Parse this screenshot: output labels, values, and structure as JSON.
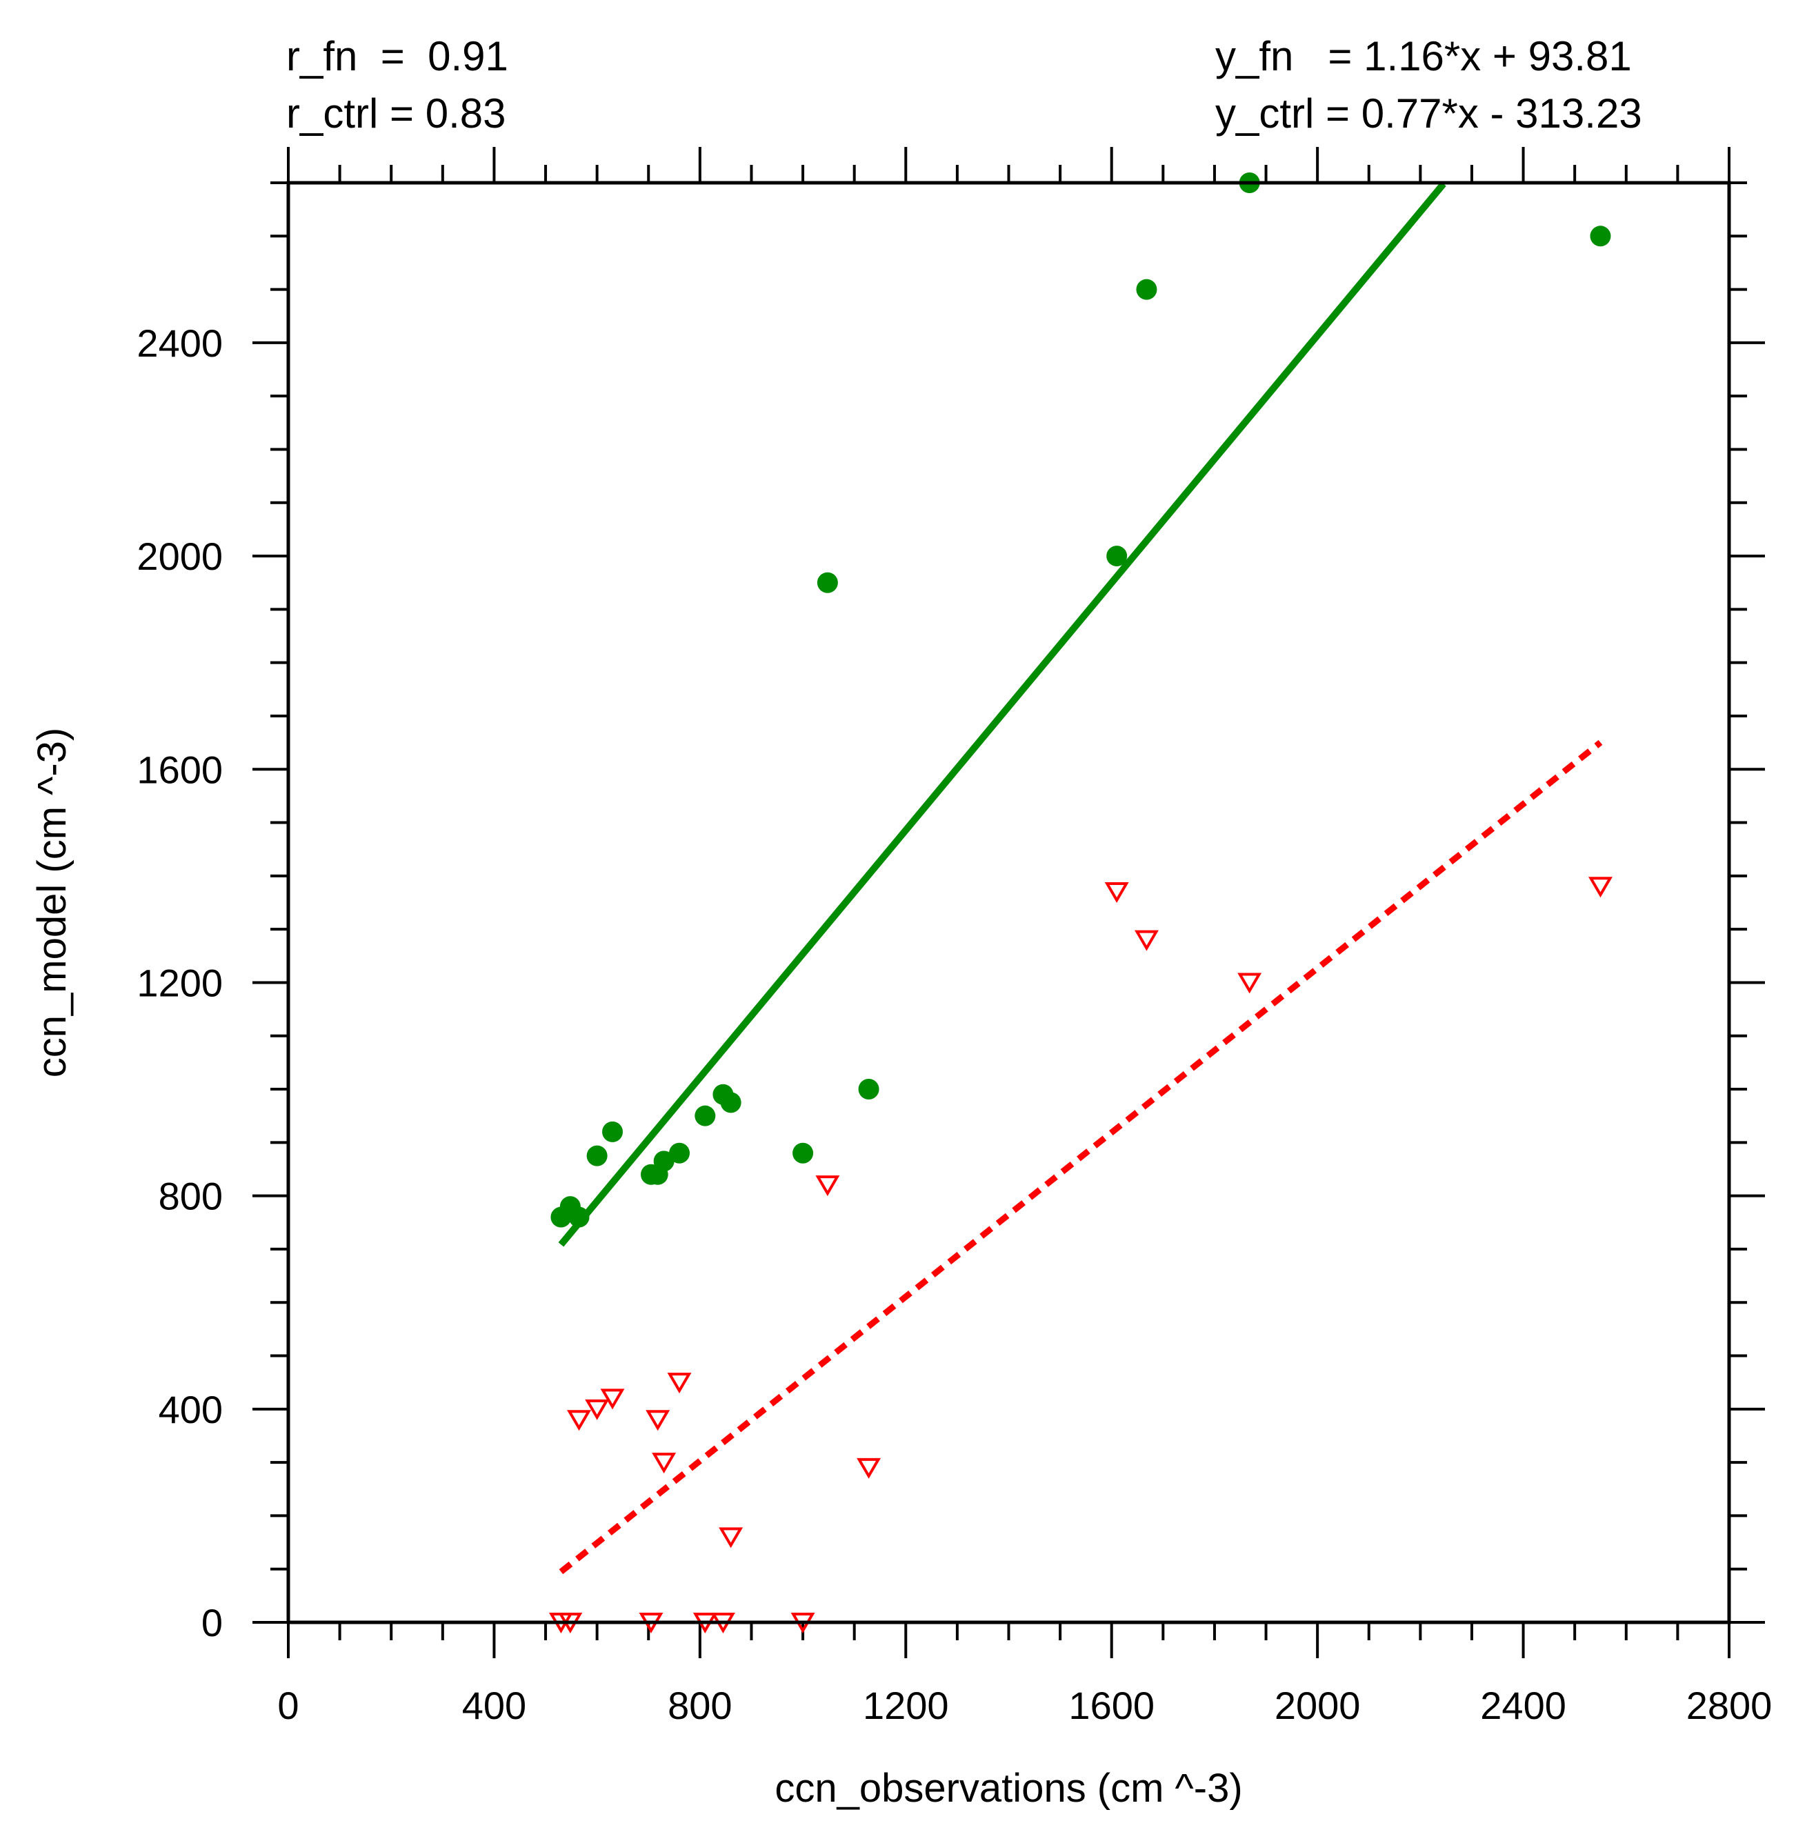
{
  "chart_data": {
    "type": "scatter",
    "xlabel": "ccn_observations (cm ^-3)",
    "ylabel": "ccn_model (cm ^-3)",
    "xlim": [
      0,
      2800
    ],
    "ylim": [
      0,
      2700
    ],
    "x_ticks": [
      "0",
      "400",
      "800",
      "1200",
      "1600",
      "2000",
      "2400",
      "2800"
    ],
    "y_ticks": [
      "0",
      "400",
      "800",
      "1200",
      "1600",
      "2000",
      "2400"
    ],
    "annotations": {
      "r_fn": "r_fn  =  0.91",
      "r_ctrl": "r_ctrl = 0.83",
      "y_fn": "y_fn   = 1.16*x + 93.81",
      "y_ctrl": "y_ctrl = 0.77*x - 313.23"
    },
    "series": [
      {
        "name": "fn",
        "color": "#008c00",
        "marker": "filled-circle",
        "points": [
          [
            530,
            760
          ],
          [
            548,
            780
          ],
          [
            565,
            760
          ],
          [
            600,
            875
          ],
          [
            630,
            920
          ],
          [
            705,
            840
          ],
          [
            718,
            840
          ],
          [
            730,
            865
          ],
          [
            760,
            880
          ],
          [
            810,
            950
          ],
          [
            845,
            990
          ],
          [
            860,
            975
          ],
          [
            1000,
            880
          ],
          [
            1048,
            1950
          ],
          [
            1128,
            1000
          ],
          [
            1610,
            2000
          ],
          [
            1668,
            2500
          ],
          [
            1868,
            2700
          ],
          [
            2550,
            2600
          ]
        ]
      },
      {
        "name": "ctrl",
        "color": "#ff0000",
        "marker": "open-triangle-down",
        "points": [
          [
            530,
            0
          ],
          [
            548,
            0
          ],
          [
            565,
            380
          ],
          [
            600,
            400
          ],
          [
            630,
            420
          ],
          [
            705,
            0
          ],
          [
            718,
            380
          ],
          [
            730,
            300
          ],
          [
            760,
            450
          ],
          [
            810,
            0
          ],
          [
            845,
            0
          ],
          [
            860,
            160
          ],
          [
            1000,
            0
          ],
          [
            1048,
            820
          ],
          [
            1128,
            290
          ],
          [
            1610,
            1370
          ],
          [
            1668,
            1280
          ],
          [
            1868,
            1200
          ],
          [
            2550,
            1380
          ]
        ]
      }
    ],
    "fits": [
      {
        "name": "fn_fit",
        "color": "#008c00",
        "style": "solid",
        "x_range": [
          530,
          2245
        ],
        "slope": 1.16,
        "intercept": 93.81
      },
      {
        "name": "ctrl_fit",
        "color": "#ff0000",
        "style": "dashed",
        "x_range": [
          530,
          2550
        ],
        "slope": 0.77,
        "intercept": -313.23
      }
    ]
  }
}
